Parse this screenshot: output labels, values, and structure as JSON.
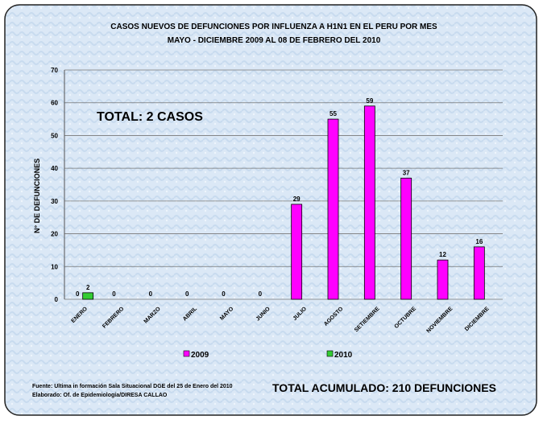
{
  "chart_data": {
    "type": "bar",
    "title": "CASOS NUEVOS DE DEFUNCIONES POR INFLUENZA A H1N1 EN EL PERU POR MES",
    "subtitle": "MAYO - DICIEMBRE 2009 AL 08 DE FEBRERO DEL 2010",
    "y_label": "N° DE  DEFUNCIONES",
    "annotations": [
      "TOTAL: 2 CASOS",
      "TOTAL ACUMULADO: 210 DEFUNCIONES"
    ],
    "source": [
      "Fuente: Ultima in formación Sala Situacional DGE del 25 de Enero del 2010",
      "Elaborado: Of. de Epidemiología/DIRESA CALLAO"
    ],
    "categories": [
      "ENERO",
      "FEBRERO",
      "MARZO",
      "ABRIL",
      "MAYO",
      "JUNIO",
      "JULIO",
      "AGOSTO",
      "SETIEMBRE",
      "OCTUBRE",
      "NOVIEMBRE",
      "DICIEMBRE"
    ],
    "series": [
      {
        "name": "2009",
        "color": "#ff00ff",
        "values": [
          0,
          0,
          0,
          0,
          0,
          0,
          29,
          55,
          59,
          37,
          12,
          16
        ]
      },
      {
        "name": "2010",
        "color": "#33cc33",
        "values": [
          2,
          null,
          null,
          null,
          null,
          null,
          null,
          null,
          null,
          null,
          null,
          null
        ]
      }
    ],
    "ylim": [
      0,
      70
    ],
    "yticks": [
      0,
      10,
      20,
      30,
      40,
      50,
      60,
      70
    ],
    "grid": true,
    "legend": "bottom"
  }
}
